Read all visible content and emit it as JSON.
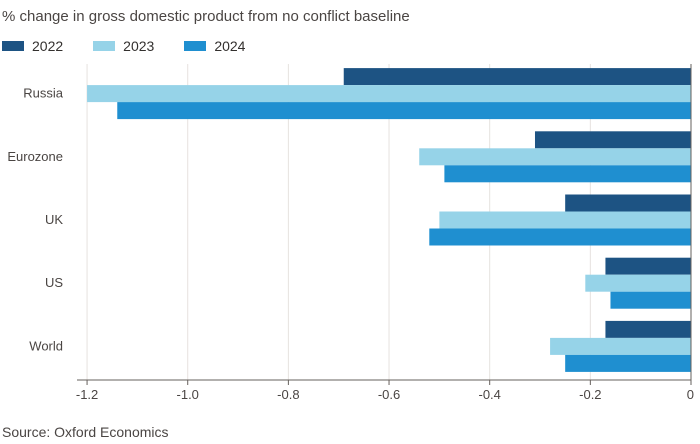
{
  "header": {
    "subtitle": "% change in gross domestic product from no conflict baseline"
  },
  "source": "Source: Oxford Economics",
  "chart_data": {
    "type": "bar",
    "orientation": "horizontal",
    "title": "",
    "subtitle": "% change in gross domestic product from no conflict baseline",
    "xlabel": "",
    "ylabel": "",
    "categories": [
      "Russia",
      "Eurozone",
      "UK",
      "US",
      "World"
    ],
    "series": [
      {
        "name": "2022",
        "color": "#1d5383",
        "values": [
          -0.69,
          -0.31,
          -0.25,
          -0.17,
          -0.17
        ]
      },
      {
        "name": "2023",
        "color": "#96d3e8",
        "values": [
          -1.2,
          -0.54,
          -0.5,
          -0.21,
          -0.28
        ]
      },
      {
        "name": "2024",
        "color": "#1f8fd0",
        "values": [
          -1.14,
          -0.49,
          -0.52,
          -0.16,
          -0.25
        ]
      }
    ],
    "xlim": [
      -1.22,
      0
    ],
    "xticks": [
      -1.2,
      -1.0,
      -0.8,
      -0.6,
      -0.4,
      -0.2,
      0
    ],
    "xtick_labels": [
      "-1.2",
      "-1.0",
      "-0.8",
      "-0.6",
      "-0.4",
      "-0.2",
      "0"
    ],
    "grid": "vertical",
    "legend_position": "top-left",
    "source": "Source: Oxford Economics"
  }
}
